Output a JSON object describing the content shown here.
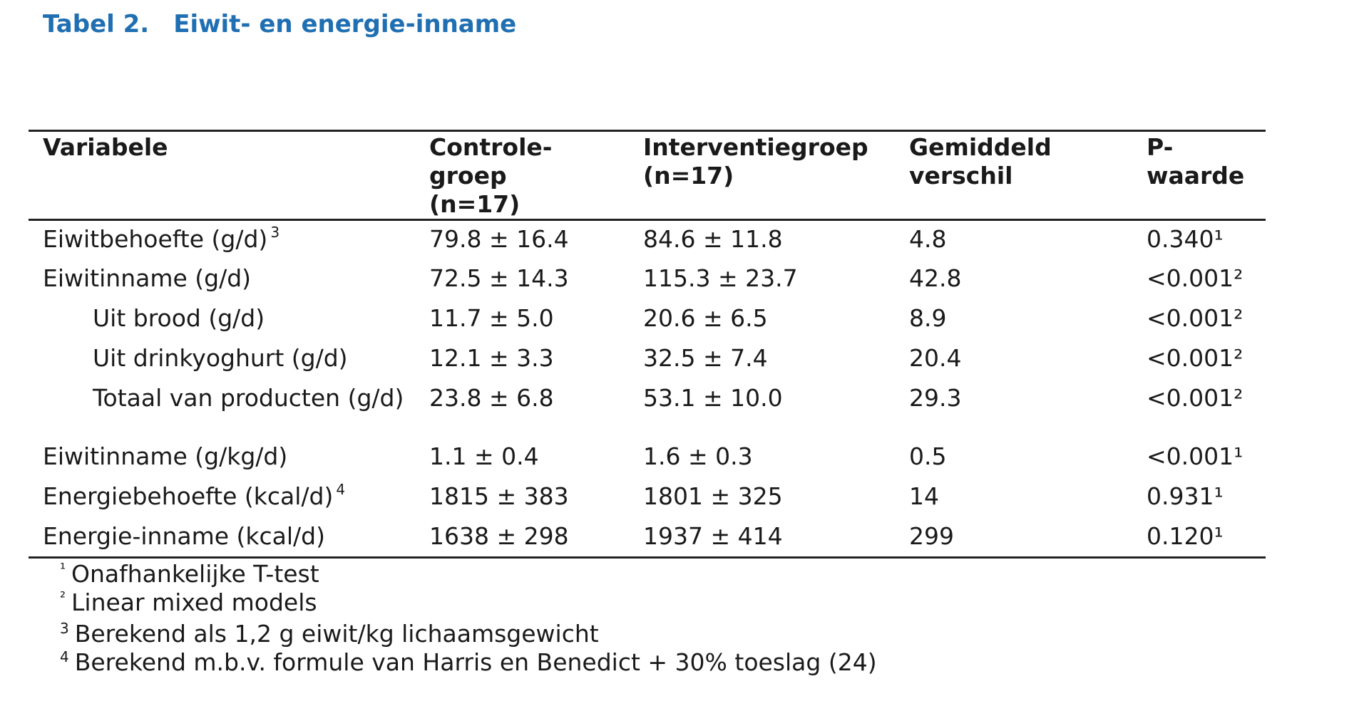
{
  "title": {
    "number": "Tabel 2.",
    "text": "Eiwit- en energie-inname"
  },
  "table": {
    "headers": [
      "Variabele",
      "Controle-\ngroep\n(n=17)",
      "Interventiegroep\n(n=17)",
      "Gemiddeld\nverschil",
      "P-\nwaarde"
    ],
    "rows": [
      {
        "label": "Eiwitbehoefte (g/d)",
        "label_sup": "3",
        "indent": false,
        "control": "79.8 ± 16.4",
        "intervention": "84.6 ± 11.8",
        "diff": "4.8",
        "p": "0.340¹"
      },
      {
        "label": "Eiwitinname (g/d)",
        "label_sup": "",
        "indent": false,
        "control": "72.5 ± 14.3",
        "intervention": "115.3 ± 23.7",
        "diff": "42.8",
        "p": "<0.001²"
      },
      {
        "label": "Uit brood (g/d)",
        "label_sup": "",
        "indent": true,
        "control": "11.7 ± 5.0",
        "intervention": "20.6 ± 6.5",
        "diff": "8.9",
        "p": "<0.001²"
      },
      {
        "label": "Uit drinkyoghurt (g/d)",
        "label_sup": "",
        "indent": true,
        "control": "12.1 ± 3.3",
        "intervention": "32.5 ± 7.4",
        "diff": "20.4",
        "p": "<0.001²"
      },
      {
        "label": "Totaal van producten (g/d)",
        "label_sup": "",
        "indent": true,
        "control": "23.8 ± 6.8",
        "intervention": "53.1 ± 10.0",
        "diff": "29.3",
        "p": "<0.001²"
      },
      {
        "label": "Eiwitinname (g/kg/d)",
        "label_sup": "",
        "indent": false,
        "control": "1.1 ± 0.4",
        "intervention": "1.6 ± 0.3",
        "diff": "0.5",
        "p": "<0.001¹"
      },
      {
        "label": "Energiebehoefte (kcal/d)",
        "label_sup": "4",
        "indent": false,
        "control": "1815 ± 383",
        "intervention": "1801 ± 325",
        "diff": "14",
        "p": "0.931¹"
      },
      {
        "label": "Energie-inname (kcal/d)",
        "label_sup": "",
        "indent": false,
        "control": "1638 ± 298",
        "intervention": "1937 ± 414",
        "diff": "299",
        "p": "0.120¹"
      }
    ]
  },
  "footnotes": [
    {
      "mark": "¹",
      "text": "Onafhankelijke T-test"
    },
    {
      "mark": "²",
      "text": "Linear mixed models"
    },
    {
      "mark": "3",
      "text": "Berekend als 1,2 g eiwit/kg lichaamsgewicht"
    },
    {
      "mark": "4",
      "text": "Berekend m.b.v. formule van Harris en Benedict + 30% toeslag (24)"
    }
  ],
  "colors": {
    "title": "#1f6fb2",
    "text": "#1a1a1a",
    "rule": "#222222"
  }
}
